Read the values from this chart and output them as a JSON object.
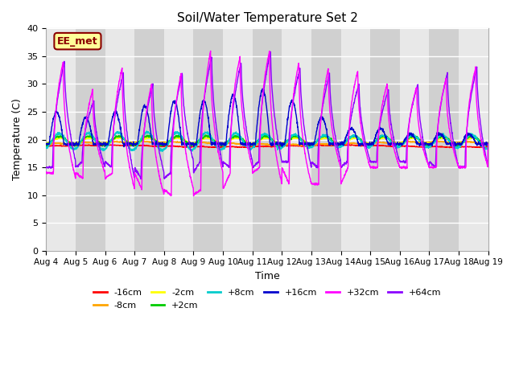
{
  "title": "Soil/Water Temperature Set 2",
  "xlabel": "Time",
  "ylabel": "Temperature (C)",
  "ylim": [
    0,
    40
  ],
  "yticks": [
    0,
    5,
    10,
    15,
    20,
    25,
    30,
    35,
    40
  ],
  "x_labels": [
    "Aug 4",
    "Aug 5",
    "Aug 6",
    "Aug 7",
    "Aug 8",
    "Aug 9",
    "Aug 10",
    "Aug 11",
    "Aug 12",
    "Aug 13",
    "Aug 14",
    "Aug 15",
    "Aug 16",
    "Aug 17",
    "Aug 18",
    "Aug 19"
  ],
  "annotation_text": "EE_met",
  "annotation_color": "#8B0000",
  "annotation_bg": "#FFFF99",
  "bg_light": "#E8E8E8",
  "bg_dark": "#D0D0D0",
  "colors": {
    "-16cm": "#FF0000",
    "-8cm": "#FFA500",
    "-2cm": "#FFFF00",
    "+2cm": "#00CC00",
    "+8cm": "#00CCCC",
    "+16cm": "#0000CD",
    "+32cm": "#FF00FF",
    "+64cm": "#8B00FF"
  },
  "peak_heights_32cm": [
    34,
    29,
    33,
    30,
    32,
    36,
    35,
    36,
    34,
    33,
    32.5,
    30,
    29.5,
    31,
    33
  ],
  "trough_depths_32cm": [
    14,
    13,
    14,
    11,
    10,
    11,
    14,
    15,
    12,
    12,
    15,
    15,
    15,
    15,
    15
  ],
  "peak_heights_64cm": [
    34,
    27,
    32,
    30,
    32,
    35,
    34,
    36,
    33,
    32,
    30,
    29,
    30,
    32,
    33
  ],
  "trough_depths_64cm": [
    15,
    16,
    15,
    13,
    14,
    16,
    15,
    16,
    16,
    15,
    16,
    16,
    16,
    15,
    15
  ],
  "peak_heights_16cm": [
    25,
    24,
    25,
    26,
    27,
    27,
    28,
    29,
    27,
    24,
    22,
    22,
    21,
    21,
    21
  ],
  "base": 19.0
}
